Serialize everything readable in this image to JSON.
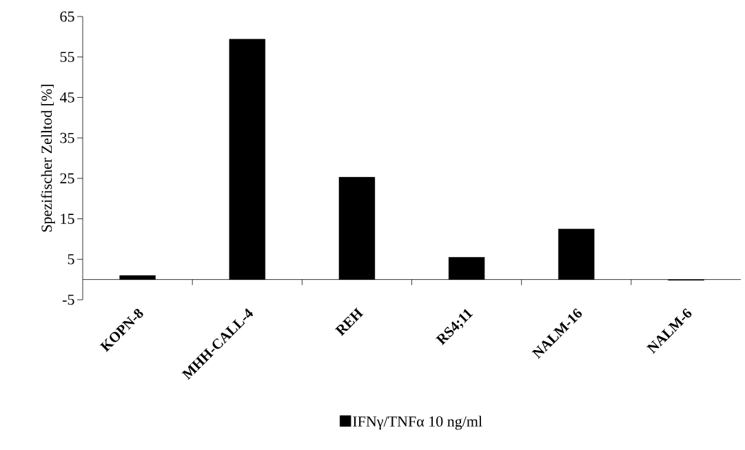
{
  "chart_data": {
    "type": "bar",
    "ylabel": "Spezifischer Zelltod [%]",
    "categories": [
      "KOPN-8",
      "MHH-CALL-4",
      "REH",
      "RS4;11",
      "NALM-16",
      "NALM-6"
    ],
    "series": [
      {
        "name": "IFNγ/TNFα 10 ng/ml",
        "color": "#000000",
        "values": [
          1.0,
          59.4,
          25.3,
          5.5,
          12.5,
          -0.2
        ]
      }
    ],
    "ylim": [
      -5,
      65
    ],
    "yticks": [
      -5,
      5,
      15,
      25,
      35,
      45,
      55,
      65
    ],
    "grid": false,
    "legend": "bottom"
  }
}
